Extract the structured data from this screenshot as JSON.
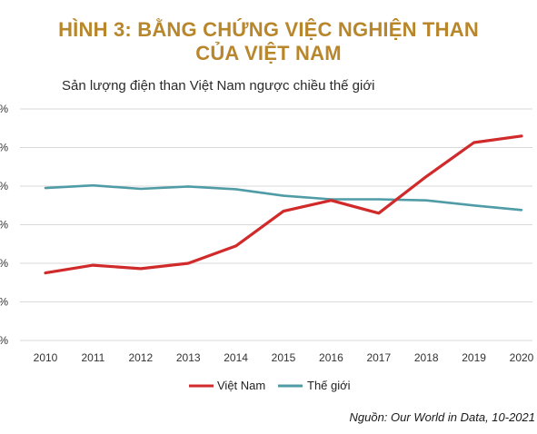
{
  "chart_data": {
    "type": "line",
    "title": [
      "HÌNH 3: BẰNG CHỨNG VIỆC NGHIỆN THAN",
      "CỦA VIỆT NAM"
    ],
    "subtitle": "Sản lượng điện than Việt Nam ngược chiều thế giới",
    "source": "Nguồn: Our World in Data, 10-2021",
    "x": [
      "2010",
      "2011",
      "2012",
      "2013",
      "2014",
      "2015",
      "2016",
      "2017",
      "2018",
      "2019",
      "2020"
    ],
    "y_tick_labels": [
      "%",
      "%",
      "%",
      "%",
      "%",
      "%",
      "%"
    ],
    "ylim": [
      0,
      6
    ],
    "grid": true,
    "legend_position": "bottom",
    "series": [
      {
        "name": "Việt Nam",
        "color": "#d02a2a",
        "values": [
          1.75,
          1.95,
          1.86,
          2.0,
          2.45,
          3.35,
          3.63,
          3.3,
          4.25,
          5.13,
          5.3
        ]
      },
      {
        "name": "Thế giới",
        "color": "#4f9ba6",
        "values": [
          3.95,
          4.02,
          3.93,
          3.99,
          3.92,
          3.75,
          3.66,
          3.66,
          3.63,
          3.5,
          3.38
        ]
      }
    ]
  }
}
